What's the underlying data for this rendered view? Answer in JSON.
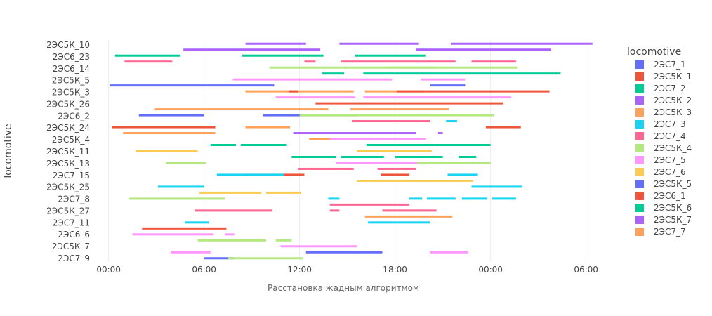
{
  "chart_data": {
    "type": "timeline",
    "title": "",
    "xlabel": "Расстановка жадным алгоритмом",
    "ylabel": "locomotive",
    "x_ticks": [
      "00:00",
      "06:00",
      "12:00",
      "18:00",
      "00:00",
      "06:00"
    ],
    "x_range_hours": [
      -1,
      30.5
    ],
    "y_categories": [
      "2ЭС5К_10",
      "2ЭС6_23",
      "2ЭС6_14",
      "2ЭС5К_5",
      "2ЭС5К_3",
      "2ЭС5К_26",
      "2ЭС6_2",
      "2ЭС5К_24",
      "2ЭС5К_4",
      "2ЭС5К_11",
      "2ЭС5К_13",
      "2ЭС7_15",
      "2ЭС5К_25",
      "2ЭС7_8",
      "2ЭС5К_27",
      "2ЭС7_11",
      "2ЭС6_6",
      "2ЭС5К_7",
      "2ЭС7_9"
    ],
    "y_tick_labels": [
      "2ЭС5К_10",
      "2ЭС6_23",
      "2ЭС6_14",
      "2ЭС5К_5",
      "2ЭС5К_3",
      "2ЭС5К_26",
      "2ЭС6_2",
      "2ЭС5К_24",
      "2ЭС5К_4",
      "2ЭС5К_11",
      "2ЭС5К_13",
      "2ЭС7_15",
      "2ЭС5К_25",
      "2ЭС7_8",
      "2ЭС5К_27",
      "2ЭС7_11",
      "2ЭС6_6",
      "2ЭС5К_7",
      "2ЭС7_9"
    ],
    "legend": {
      "title": "locomotive",
      "position": "right",
      "items": [
        {
          "name": "2ЭС7_1",
          "color": "#636EFA"
        },
        {
          "name": "2ЭС5К_1",
          "color": "#EF553B"
        },
        {
          "name": "2ЭС7_2",
          "color": "#00CC96"
        },
        {
          "name": "2ЭС5К_2",
          "color": "#AB63FA"
        },
        {
          "name": "2ЭС5К_3",
          "color": "#FFA15A"
        },
        {
          "name": "2ЭС7_3",
          "color": "#19D3F3"
        },
        {
          "name": "2ЭС7_4",
          "color": "#FF6692"
        },
        {
          "name": "2ЭС5К_4",
          "color": "#B6E880"
        },
        {
          "name": "2ЭС7_5",
          "color": "#FF97FF"
        },
        {
          "name": "2ЭС7_6",
          "color": "#FECB52"
        },
        {
          "name": "2ЭС5К_5",
          "color": "#636EFA"
        },
        {
          "name": "2ЭС6_1",
          "color": "#EF553B"
        },
        {
          "name": "2ЭС5К_6",
          "color": "#00CC96"
        },
        {
          "name": "2ЭС5К_7",
          "color": "#AB63FA"
        },
        {
          "name": "2ЭС7_7",
          "color": "#FFA15A"
        }
      ]
    },
    "row_slots": 37,
    "segments": [
      {
        "slot": 0,
        "start": 8.6,
        "end": 12.4,
        "color": "#AB63FA"
      },
      {
        "slot": 0,
        "start": 14.5,
        "end": 19.5,
        "color": "#AB63FA"
      },
      {
        "slot": 0,
        "start": 21.5,
        "end": 30.4,
        "color": "#AB63FA"
      },
      {
        "slot": 1,
        "start": 4.7,
        "end": 13.3,
        "color": "#AB63FA"
      },
      {
        "slot": 1,
        "start": 19.3,
        "end": 27.8,
        "color": "#AB63FA"
      },
      {
        "slot": 2,
        "start": 0.4,
        "end": 4.5,
        "color": "#00CC96"
      },
      {
        "slot": 2,
        "start": 8.4,
        "end": 13.5,
        "color": "#00CC96"
      },
      {
        "slot": 2,
        "start": 15.5,
        "end": 19.9,
        "color": "#00CC96"
      },
      {
        "slot": 3,
        "start": 1.0,
        "end": 4.0,
        "color": "#FF6692"
      },
      {
        "slot": 3,
        "start": 12.3,
        "end": 13.0,
        "color": "#FF6692"
      },
      {
        "slot": 3,
        "start": 14.6,
        "end": 21.8,
        "color": "#FF6692"
      },
      {
        "slot": 3,
        "start": 22.8,
        "end": 25.6,
        "color": "#FF6692"
      },
      {
        "slot": 4,
        "start": 10.1,
        "end": 20.5,
        "color": "#B6E880"
      },
      {
        "slot": 4,
        "start": 17.4,
        "end": 25.7,
        "color": "#B6E880"
      },
      {
        "slot": 5,
        "start": 13.4,
        "end": 14.8,
        "color": "#00CC96"
      },
      {
        "slot": 5,
        "start": 16.0,
        "end": 28.4,
        "color": "#00CC96"
      },
      {
        "slot": 6,
        "start": 7.8,
        "end": 17.8,
        "color": "#FF97FF"
      },
      {
        "slot": 6,
        "start": 19.6,
        "end": 22.4,
        "color": "#FF97FF"
      },
      {
        "slot": 7,
        "start": 0.1,
        "end": 10.4,
        "color": "#636EFA"
      },
      {
        "slot": 7,
        "start": 20.2,
        "end": 22.4,
        "color": "#636EFA"
      },
      {
        "slot": 8,
        "start": 8.6,
        "end": 15.4,
        "color": "#FFA15A"
      },
      {
        "slot": 8,
        "start": 11.3,
        "end": 11.9,
        "color": "#EF553B"
      },
      {
        "slot": 8,
        "start": 16.1,
        "end": 19.8,
        "color": "#FFA15A"
      },
      {
        "slot": 8,
        "start": 18.1,
        "end": 27.7,
        "color": "#EF553B"
      },
      {
        "slot": 9,
        "start": 10.5,
        "end": 15.5,
        "color": "#FF97FF"
      },
      {
        "slot": 9,
        "start": 16.0,
        "end": 25.3,
        "color": "#FF97FF"
      },
      {
        "slot": 10,
        "start": 13.0,
        "end": 24.8,
        "color": "#EF553B"
      },
      {
        "slot": 11,
        "start": 2.9,
        "end": 13.8,
        "color": "#FFA15A"
      },
      {
        "slot": 11,
        "start": 15.2,
        "end": 21.4,
        "color": "#FFA15A"
      },
      {
        "slot": 12,
        "start": 1.9,
        "end": 6.0,
        "color": "#636EFA"
      },
      {
        "slot": 12,
        "start": 9.7,
        "end": 15.6,
        "color": "#636EFA"
      },
      {
        "slot": 12,
        "start": 12.0,
        "end": 24.2,
        "color": "#B6E880"
      },
      {
        "slot": 13,
        "start": 15.3,
        "end": 20.2,
        "color": "#FF6692"
      },
      {
        "slot": 13,
        "start": 21.2,
        "end": 21.9,
        "color": "#19D3F3"
      },
      {
        "slot": 14,
        "start": 0.2,
        "end": 6.7,
        "color": "#EF553B"
      },
      {
        "slot": 14,
        "start": 8.6,
        "end": 11.4,
        "color": "#FFA15A"
      },
      {
        "slot": 14,
        "start": 23.7,
        "end": 25.9,
        "color": "#EF553B"
      },
      {
        "slot": 15,
        "start": 0.9,
        "end": 6.7,
        "color": "#FFA15A"
      },
      {
        "slot": 15,
        "start": 11.6,
        "end": 19.3,
        "color": "#AB63FA"
      },
      {
        "slot": 15,
        "start": 20.7,
        "end": 21.0,
        "color": "#AB63FA"
      },
      {
        "slot": 16,
        "start": 12.6,
        "end": 16.7,
        "color": "#FFA15A"
      },
      {
        "slot": 16,
        "start": 13.9,
        "end": 19.9,
        "color": "#FF97FF"
      },
      {
        "slot": 17,
        "start": 6.4,
        "end": 8.0,
        "color": "#00CC96"
      },
      {
        "slot": 17,
        "start": 8.3,
        "end": 11.2,
        "color": "#00CC96"
      },
      {
        "slot": 17,
        "start": 16.8,
        "end": 19.8,
        "color": "#00CC96"
      },
      {
        "slot": 17,
        "start": 16.2,
        "end": 24.0,
        "color": "#00CC96"
      },
      {
        "slot": 18,
        "start": 1.7,
        "end": 5.6,
        "color": "#FECB52"
      },
      {
        "slot": 18,
        "start": 15.6,
        "end": 20.3,
        "color": "#FECB52"
      },
      {
        "slot": 19,
        "start": 11.5,
        "end": 14.3,
        "color": "#00CC96"
      },
      {
        "slot": 19,
        "start": 14.6,
        "end": 17.3,
        "color": "#00CC96"
      },
      {
        "slot": 19,
        "start": 18.0,
        "end": 21.0,
        "color": "#00CC96"
      },
      {
        "slot": 19,
        "start": 22.0,
        "end": 23.1,
        "color": "#00CC96"
      },
      {
        "slot": 20,
        "start": 3.6,
        "end": 6.1,
        "color": "#B6E880"
      },
      {
        "slot": 20,
        "start": 14.3,
        "end": 21.2,
        "color": "#FF97FF"
      },
      {
        "slot": 20,
        "start": 19.4,
        "end": 24.0,
        "color": "#B6E880"
      },
      {
        "slot": 21,
        "start": 11.9,
        "end": 15.4,
        "color": "#FF6692"
      },
      {
        "slot": 21,
        "start": 16.9,
        "end": 19.3,
        "color": "#FF6692"
      },
      {
        "slot": 22,
        "start": 8.5,
        "end": 12.3,
        "color": "#EF553B"
      },
      {
        "slot": 22,
        "start": 6.8,
        "end": 11.0,
        "color": "#19D3F3"
      },
      {
        "slot": 22,
        "start": 17.1,
        "end": 18.9,
        "color": "#EF553B"
      },
      {
        "slot": 22,
        "start": 21.3,
        "end": 23.2,
        "color": "#19D3F3"
      },
      {
        "slot": 23,
        "start": 15.6,
        "end": 22.9,
        "color": "#FECB52"
      },
      {
        "slot": 24,
        "start": 3.1,
        "end": 6.0,
        "color": "#19D3F3"
      },
      {
        "slot": 24,
        "start": 22.8,
        "end": 26.0,
        "color": "#19D3F3"
      },
      {
        "slot": 25,
        "start": 5.7,
        "end": 9.6,
        "color": "#FECB52"
      },
      {
        "slot": 25,
        "start": 9.9,
        "end": 12.1,
        "color": "#FECB52"
      },
      {
        "slot": 26,
        "start": 1.3,
        "end": 7.3,
        "color": "#B6E880"
      },
      {
        "slot": 26,
        "start": 13.8,
        "end": 14.5,
        "color": "#19D3F3"
      },
      {
        "slot": 26,
        "start": 18.9,
        "end": 19.7,
        "color": "#19D3F3"
      },
      {
        "slot": 26,
        "start": 20.0,
        "end": 21.8,
        "color": "#19D3F3"
      },
      {
        "slot": 26,
        "start": 22.2,
        "end": 23.8,
        "color": "#19D3F3"
      },
      {
        "slot": 26,
        "start": 24.1,
        "end": 25.6,
        "color": "#19D3F3"
      },
      {
        "slot": 27,
        "start": 13.9,
        "end": 18.9,
        "color": "#FF6692"
      },
      {
        "slot": 28,
        "start": 5.4,
        "end": 10.3,
        "color": "#FF6692"
      },
      {
        "slot": 28,
        "start": 13.9,
        "end": 14.5,
        "color": "#FF6692"
      },
      {
        "slot": 28,
        "start": 17.2,
        "end": 20.6,
        "color": "#FF6692"
      },
      {
        "slot": 29,
        "start": 16.1,
        "end": 21.6,
        "color": "#FFA15A"
      },
      {
        "slot": 30,
        "start": 4.8,
        "end": 6.3,
        "color": "#19D3F3"
      },
      {
        "slot": 30,
        "start": 16.3,
        "end": 20.2,
        "color": "#19D3F3"
      },
      {
        "slot": 31,
        "start": 2.1,
        "end": 7.4,
        "color": "#EF553B"
      },
      {
        "slot": 32,
        "start": 1.5,
        "end": 6.6,
        "color": "#FF97FF"
      },
      {
        "slot": 32,
        "start": 7.3,
        "end": 7.9,
        "color": "#FF97FF"
      },
      {
        "slot": 33,
        "start": 5.6,
        "end": 9.9,
        "color": "#B6E880"
      },
      {
        "slot": 33,
        "start": 10.5,
        "end": 11.5,
        "color": "#B6E880"
      },
      {
        "slot": 34,
        "start": 10.8,
        "end": 15.6,
        "color": "#FF97FF"
      },
      {
        "slot": 35,
        "start": 12.4,
        "end": 17.2,
        "color": "#636EFA"
      },
      {
        "slot": 35,
        "start": 3.9,
        "end": 6.4,
        "color": "#FF97FF"
      },
      {
        "slot": 35,
        "start": 20.2,
        "end": 22.6,
        "color": "#FF97FF"
      },
      {
        "slot": 36,
        "start": 6.0,
        "end": 7.9,
        "color": "#636EFA"
      },
      {
        "slot": 36,
        "start": 7.5,
        "end": 12.2,
        "color": "#B6E880"
      }
    ]
  }
}
